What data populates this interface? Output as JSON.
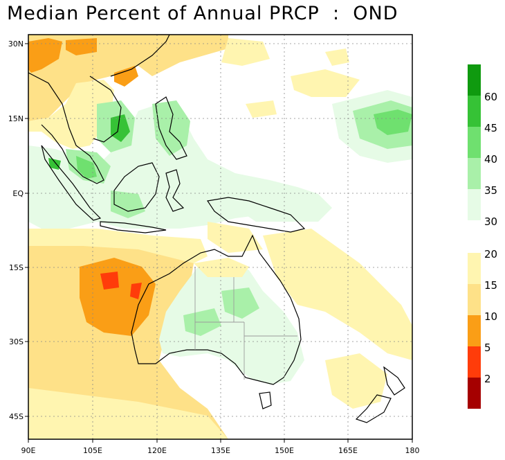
{
  "title": "Median Percent of Annual PRCP  :  OND",
  "map": {
    "lon_ticks": [
      "90E",
      "105E",
      "120E",
      "135E",
      "150E",
      "165E",
      "180"
    ],
    "lat_ticks": [
      "30N",
      "15N",
      "EQ",
      "15S",
      "30S",
      "45S"
    ],
    "lon_range": [
      90,
      180
    ],
    "lat_range": [
      -53,
      34
    ],
    "grid": "dotted"
  },
  "legend": {
    "upper": {
      "labels": [
        "60",
        "45",
        "40",
        "35",
        "30"
      ],
      "colors": [
        "#0f9a0f",
        "#36c236",
        "#6fe06f",
        "#a9f0a9",
        "#e6fbe6"
      ]
    },
    "lower": {
      "labels": [
        "20",
        "15",
        "10",
        "5",
        "2"
      ],
      "colors": [
        "#fff5b0",
        "#fee188",
        "#fa9e16",
        "#ff3c0a",
        "#a50000"
      ]
    }
  },
  "regions": [
    {
      "name": "indochina-dry",
      "color": "#fee188"
    },
    {
      "name": "south-china-dry",
      "color": "#fa9e16"
    },
    {
      "name": "vietnam-wet",
      "color": "#36c236"
    },
    {
      "name": "philippines-wet",
      "color": "#a9f0a9"
    },
    {
      "name": "nw-pacific-wet",
      "color": "#6fe06f"
    },
    {
      "name": "indian-ocean-dry",
      "color": "#fa9e16"
    },
    {
      "name": "w-australia-core",
      "color": "#ff3c0a"
    },
    {
      "name": "australia-interior-wet",
      "color": "#a9f0a9"
    },
    {
      "name": "south-pacific-dry",
      "color": "#fff5b0"
    }
  ]
}
